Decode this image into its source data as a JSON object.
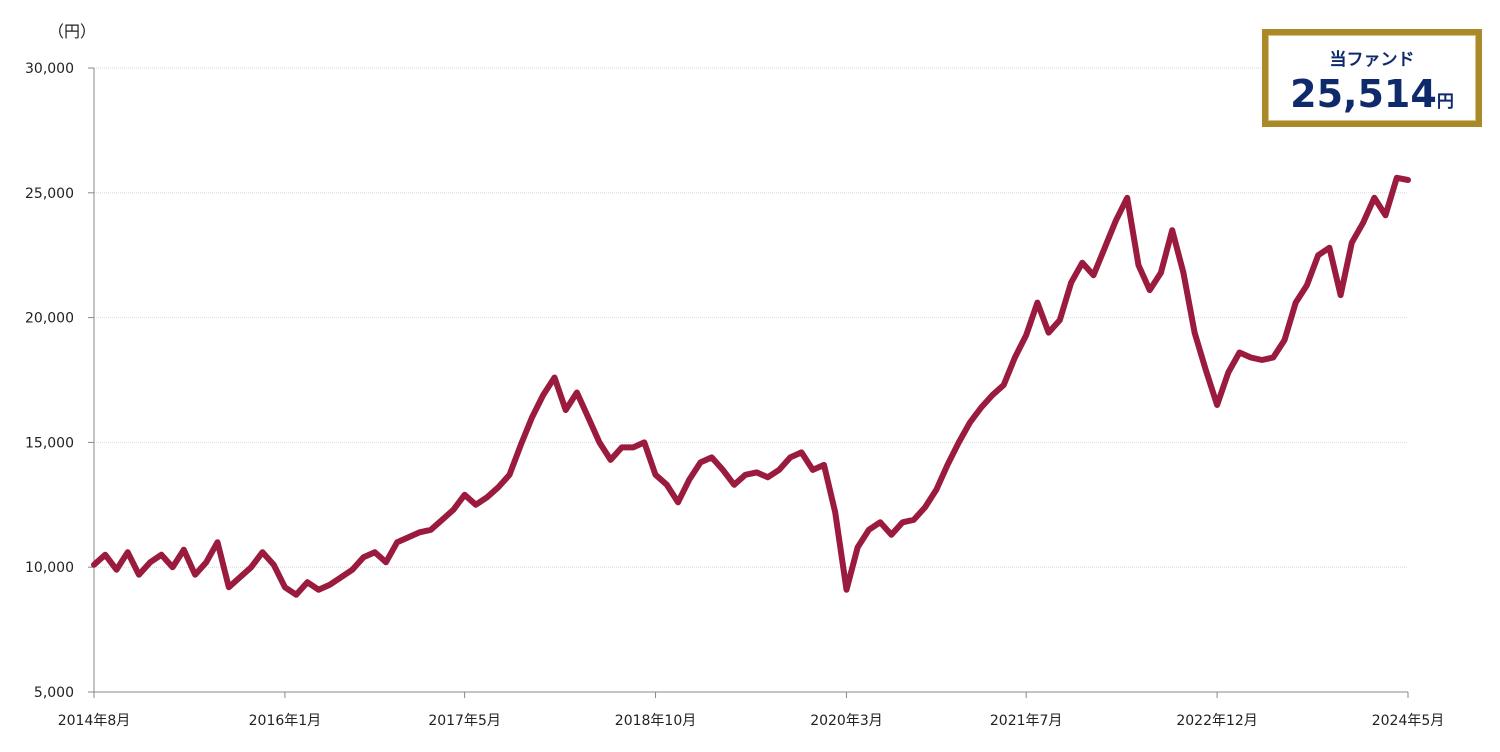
{
  "chart_data": {
    "type": "line",
    "y_unit_label": "（円）",
    "ylim": [
      5000,
      30000
    ],
    "yticks": [
      5000,
      10000,
      15000,
      20000,
      25000,
      30000
    ],
    "ytick_labels": [
      "5,000",
      "10,000",
      "15,000",
      "20,000",
      "25,000",
      "30,000"
    ],
    "xlim": [
      "2014-08",
      "2024-05"
    ],
    "xtick_labels": [
      "2014年8月",
      "2016年1月",
      "2017年5月",
      "2018年10月",
      "2020年3月",
      "2021年7月",
      "2022年12月",
      "2024年5月"
    ],
    "xtick_dates": [
      "2014-08",
      "2016-01",
      "2017-05",
      "2018-10",
      "2020-03",
      "2021-07",
      "2022-12",
      "2024-05"
    ],
    "grid": true,
    "line_color": "#9b1b3f",
    "series": [
      {
        "x": [
          "2014-08",
          "2014-09",
          "2014-10",
          "2014-11",
          "2014-12",
          "2015-01",
          "2015-02",
          "2015-03",
          "2015-04",
          "2015-05",
          "2015-06",
          "2015-07",
          "2015-08",
          "2015-09",
          "2015-10",
          "2015-11",
          "2015-12",
          "2016-01",
          "2016-02",
          "2016-03",
          "2016-04",
          "2016-05",
          "2016-06",
          "2016-07",
          "2016-08",
          "2016-09",
          "2016-10",
          "2016-11",
          "2016-12",
          "2017-01",
          "2017-02",
          "2017-03",
          "2017-04",
          "2017-05",
          "2017-06",
          "2017-07",
          "2017-08",
          "2017-09",
          "2017-10",
          "2017-11",
          "2017-12",
          "2018-01",
          "2018-02",
          "2018-03",
          "2018-04",
          "2018-05",
          "2018-06",
          "2018-07",
          "2018-08",
          "2018-09",
          "2018-10",
          "2018-11",
          "2018-12",
          "2019-01",
          "2019-02",
          "2019-03",
          "2019-04",
          "2019-05",
          "2019-06",
          "2019-07",
          "2019-08",
          "2019-09",
          "2019-10",
          "2019-11",
          "2019-12",
          "2020-01",
          "2020-02",
          "2020-03",
          "2020-04",
          "2020-05",
          "2020-06",
          "2020-07",
          "2020-08",
          "2020-09",
          "2020-10",
          "2020-11",
          "2020-12",
          "2021-01",
          "2021-02",
          "2021-03",
          "2021-04",
          "2021-05",
          "2021-06",
          "2021-07",
          "2021-08",
          "2021-09",
          "2021-10",
          "2021-11",
          "2021-12",
          "2022-01",
          "2022-02",
          "2022-03",
          "2022-04",
          "2022-05",
          "2022-06",
          "2022-07",
          "2022-08",
          "2022-09",
          "2022-10",
          "2022-11",
          "2022-12",
          "2023-01",
          "2023-02",
          "2023-03",
          "2023-04",
          "2023-05",
          "2023-06",
          "2023-07",
          "2023-08",
          "2023-09",
          "2023-10",
          "2023-11",
          "2023-12",
          "2024-01",
          "2024-02",
          "2024-03",
          "2024-04",
          "2024-05"
        ],
        "y": [
          10100,
          10500,
          9900,
          10600,
          9700,
          10200,
          10500,
          10000,
          10700,
          9700,
          10200,
          11000,
          9200,
          9600,
          10000,
          10600,
          10100,
          9200,
          8900,
          9400,
          9100,
          9300,
          9600,
          9900,
          10400,
          10600,
          10200,
          11000,
          11200,
          11400,
          11500,
          11900,
          12300,
          12900,
          12500,
          12800,
          13200,
          13700,
          14900,
          16000,
          16900,
          17600,
          16300,
          17000,
          16000,
          15000,
          14300,
          14800,
          14800,
          15000,
          13700,
          13300,
          12600,
          13500,
          14200,
          14400,
          13900,
          13300,
          13700,
          13800,
          13600,
          13900,
          14400,
          14600,
          13900,
          14100,
          12200,
          9100,
          10800,
          11500,
          11800,
          11300,
          11800,
          11900,
          12400,
          13100,
          14100,
          15000,
          15800,
          16400,
          16900,
          17300,
          18400,
          19300,
          20600,
          19400,
          19900,
          21400,
          22200,
          21700,
          22800,
          23900,
          24800,
          22100,
          21100,
          21800,
          23500,
          21800,
          19400,
          17900,
          16500,
          17800,
          18600,
          18400,
          18300,
          18400,
          19100,
          20600,
          21300,
          22500,
          22800,
          20900,
          23000,
          23800,
          24800,
          24100,
          25600,
          25514
        ]
      }
    ]
  },
  "badge": {
    "title": "当ファンド",
    "value": "25,514",
    "unit": "円"
  }
}
